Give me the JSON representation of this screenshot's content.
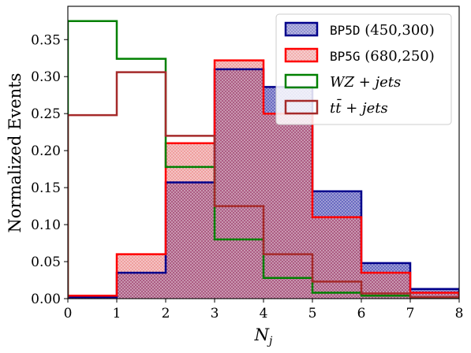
{
  "chart_data": {
    "type": "histogram",
    "xlabel": "N_j",
    "ylabel": "Normalized Events",
    "xlim": [
      0,
      8
    ],
    "ylim": [
      0,
      0.395
    ],
    "bin_edges": [
      0,
      1,
      2,
      3,
      4,
      5,
      6,
      7,
      8
    ],
    "x_ticks": [
      "0",
      "1",
      "2",
      "3",
      "4",
      "5",
      "6",
      "7",
      "8"
    ],
    "y_ticks": [
      "0.00",
      "0.05",
      "0.10",
      "0.15",
      "0.20",
      "0.25",
      "0.30",
      "0.35"
    ],
    "legend_position": "top-right",
    "series": [
      {
        "name": "BP5D (450,300)",
        "code": "BP5D",
        "mass": "(450,300)",
        "style": "filled-hatched",
        "edge_color": "#00008b",
        "fill_color": "#1e1e9c",
        "values": [
          0.002,
          0.035,
          0.157,
          0.31,
          0.286,
          0.145,
          0.048,
          0.013
        ]
      },
      {
        "name": "BP5G (680,250)",
        "code": "BP5G",
        "mass": "(680,250)",
        "style": "filled-hatched",
        "edge_color": "#ff0000",
        "fill_color": "#e83a3a",
        "values": [
          0.004,
          0.06,
          0.21,
          0.322,
          0.25,
          0.11,
          0.035,
          0.008
        ]
      },
      {
        "name": "WZ + jets",
        "style": "step",
        "edge_color": "#008000",
        "values": [
          0.375,
          0.324,
          0.178,
          0.08,
          0.028,
          0.008,
          0.004,
          0.001
        ]
      },
      {
        "name": "tt̄ + jets",
        "style": "step",
        "edge_color": "#a52a2a",
        "values": [
          0.248,
          0.306,
          0.22,
          0.125,
          0.06,
          0.023,
          0.007,
          0.002
        ]
      }
    ]
  }
}
